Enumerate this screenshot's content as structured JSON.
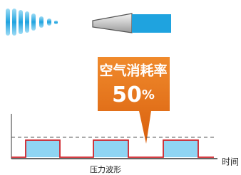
{
  "callout": {
    "title": "空气消耗率",
    "value": "50",
    "unit": "%"
  },
  "chart": {
    "x_label": "时间",
    "caption": "压力波形"
  }
}
